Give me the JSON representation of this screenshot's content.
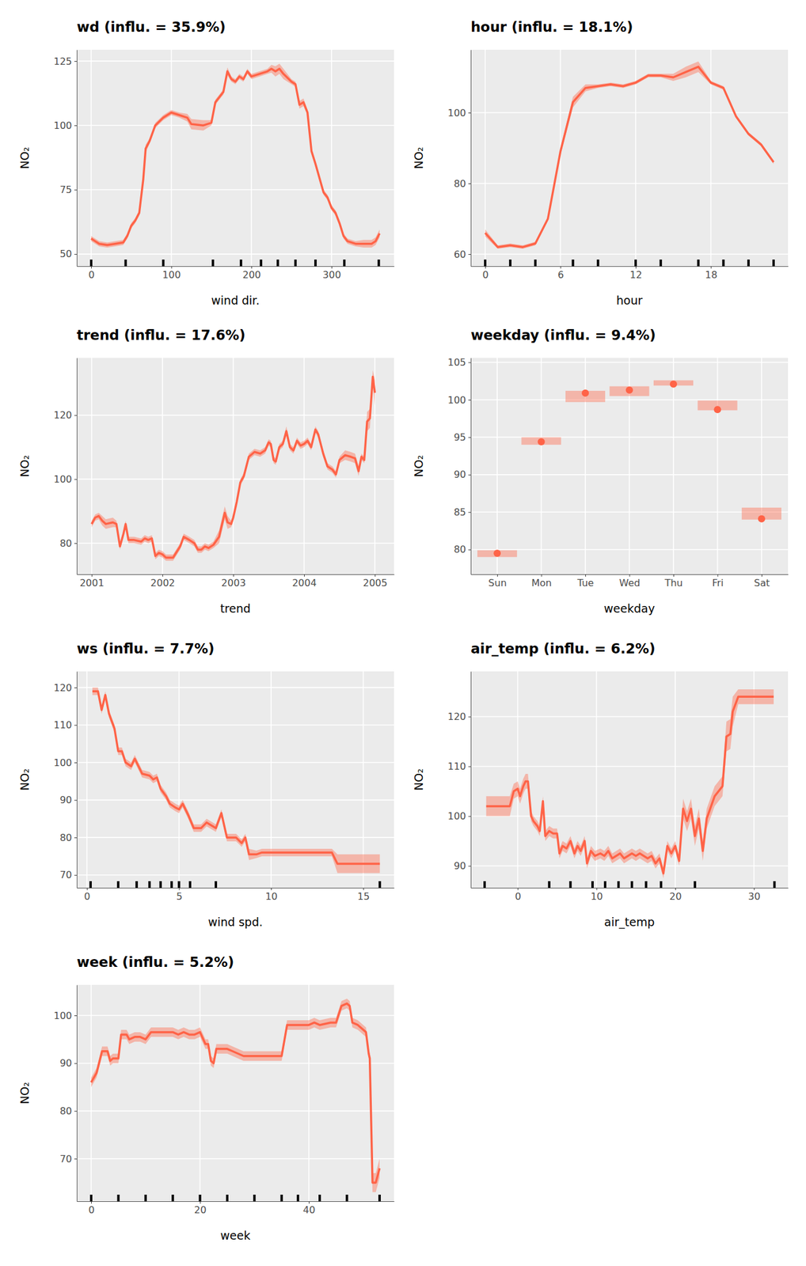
{
  "chart_data": [
    {
      "type": "line",
      "title": "wd (influ. = 35.9%)",
      "x_label": "wind dir.",
      "y_label": "NO₂",
      "color": "#ff6347",
      "grid": true,
      "xlim": [
        -18,
        378
      ],
      "xticks": [
        0,
        100,
        200,
        300
      ],
      "ylim": [
        45.3,
        129.4
      ],
      "yticks": [
        50,
        75,
        100,
        125
      ],
      "x": [
        0,
        5,
        10,
        20,
        30,
        40,
        45,
        50,
        55,
        60,
        65,
        68,
        73,
        80,
        90,
        100,
        110,
        120,
        125,
        140,
        150,
        155,
        160,
        165,
        170,
        175,
        180,
        185,
        190,
        195,
        200,
        210,
        220,
        225,
        230,
        235,
        240,
        250,
        255,
        260,
        265,
        270,
        275,
        280,
        290,
        295,
        300,
        305,
        310,
        315,
        320,
        330,
        340,
        350,
        355,
        360
      ],
      "values": [
        56,
        55,
        54,
        53.5,
        54,
        54.5,
        57,
        61,
        63,
        66,
        79,
        91,
        94,
        100,
        103,
        105,
        104,
        103,
        100.5,
        100,
        101,
        109,
        111,
        113,
        121,
        118,
        117,
        119,
        118,
        121,
        119,
        120,
        121,
        122,
        121,
        122,
        120,
        117,
        116,
        108,
        109,
        105,
        90,
        85,
        74,
        72,
        68,
        66,
        62,
        57,
        55,
        54,
        54,
        54,
        55,
        58
      ],
      "error": [
        1,
        1,
        1,
        1,
        1,
        1,
        1,
        1,
        1,
        1,
        1.5,
        1.5,
        1,
        1,
        1,
        1,
        1,
        1.5,
        2,
        2,
        1,
        1,
        1,
        1,
        1.5,
        1,
        1,
        1,
        1,
        1,
        1,
        1,
        1,
        1.5,
        2,
        2,
        2,
        1,
        1,
        1.5,
        1.5,
        1,
        1,
        1,
        1,
        1,
        1,
        1,
        1,
        1,
        1,
        1,
        1.5,
        1.5,
        1.5,
        1.5
      ],
      "rug": [
        0,
        43,
        90,
        152,
        187,
        212,
        233,
        255,
        280,
        316,
        359
      ]
    },
    {
      "type": "line",
      "title": "hour (influ. = 18.1%)",
      "x_label": "hour",
      "y_label": "NO₂",
      "color": "#ff6347",
      "grid": true,
      "xlim": [
        -1.15,
        24.15
      ],
      "xticks": [
        0,
        6,
        12,
        18
      ],
      "ylim": [
        56.6,
        117.8
      ],
      "yticks": [
        60,
        80,
        100
      ],
      "x": [
        0,
        1,
        2,
        3,
        4,
        5,
        6,
        7,
        8,
        9,
        10,
        11,
        12,
        13,
        14,
        15,
        16,
        17,
        18,
        19,
        20,
        21,
        22,
        23
      ],
      "values": [
        66,
        62,
        62.5,
        62,
        63,
        70,
        89,
        103,
        107,
        107.5,
        108,
        107.5,
        108.5,
        110.5,
        110.5,
        110,
        111.5,
        113,
        108.5,
        107,
        99,
        94,
        91,
        86
      ],
      "error": [
        1,
        0.5,
        0.5,
        0.5,
        0.5,
        0.5,
        1,
        1.5,
        1,
        0.5,
        0.5,
        0.5,
        0.5,
        0.5,
        0.5,
        1,
        1.5,
        1.5,
        0.5,
        0.5,
        0.5,
        0.5,
        0.5,
        0.5
      ],
      "rug": [
        0,
        2,
        4,
        7,
        9,
        12,
        14,
        17,
        19,
        21,
        23
      ]
    },
    {
      "type": "line",
      "title": "trend (influ. = 17.6%)",
      "x_label": "trend",
      "y_label": "NO₂",
      "color": "#ff6347",
      "grid": true,
      "xlim": [
        2000.79,
        2005.27
      ],
      "xticks": [
        2001,
        2002,
        2003,
        2004,
        2005
      ],
      "ylim": [
        70.3,
        137.9
      ],
      "yticks": [
        80,
        100,
        120
      ],
      "x": [
        2001.0,
        2001.05,
        2001.1,
        2001.15,
        2001.2,
        2001.3,
        2001.35,
        2001.4,
        2001.45,
        2001.48,
        2001.52,
        2001.6,
        2001.7,
        2001.75,
        2001.8,
        2001.85,
        2001.9,
        2001.95,
        2002.0,
        2002.05,
        2002.15,
        2002.25,
        2002.3,
        2002.38,
        2002.45,
        2002.5,
        2002.55,
        2002.6,
        2002.65,
        2002.72,
        2002.8,
        2002.88,
        2002.92,
        2002.97,
        2003.0,
        2003.05,
        2003.1,
        2003.15,
        2003.22,
        2003.3,
        2003.38,
        2003.45,
        2003.5,
        2003.53,
        2003.57,
        2003.6,
        2003.65,
        2003.7,
        2003.75,
        2003.8,
        2003.85,
        2003.9,
        2003.95,
        2004.0,
        2004.05,
        2004.1,
        2004.16,
        2004.2,
        2004.27,
        2004.33,
        2004.4,
        2004.45,
        2004.5,
        2004.58,
        2004.66,
        2004.72,
        2004.77,
        2004.81,
        2004.85,
        2004.89,
        2004.93,
        2004.97,
        2005.0
      ],
      "values": [
        86,
        88,
        88.5,
        87,
        86,
        86.5,
        86,
        79,
        83,
        86,
        81,
        81,
        80.5,
        81.5,
        81,
        81.5,
        76,
        77,
        76.5,
        75.5,
        75.5,
        79,
        82,
        81,
        80,
        78,
        78,
        79,
        78.5,
        79.5,
        82,
        89.5,
        86.5,
        86,
        88,
        93,
        99,
        101,
        107,
        108.5,
        108,
        109,
        111.5,
        111,
        106,
        105.5,
        110,
        111,
        115,
        110,
        109,
        112,
        110.5,
        111,
        112,
        110,
        115.5,
        114,
        108,
        104,
        103,
        101.5,
        106,
        107.5,
        107,
        106.5,
        102.5,
        107,
        106,
        118,
        119,
        132,
        127
      ],
      "error": [
        1,
        1,
        1,
        1.5,
        1.5,
        1.5,
        1,
        1,
        1,
        1,
        1,
        1,
        1,
        1,
        1,
        1,
        1,
        1,
        1,
        1,
        1,
        1,
        1,
        1,
        1,
        1,
        1,
        1,
        1,
        1,
        2,
        2,
        2,
        1,
        1,
        1,
        1,
        1,
        1,
        1,
        1,
        1,
        1,
        1,
        1,
        1,
        1,
        1,
        1.5,
        1,
        1,
        1,
        1,
        1,
        1,
        1,
        1,
        1,
        1,
        1,
        1,
        1,
        1,
        1.5,
        1.5,
        1.5,
        1.5,
        1,
        1,
        3,
        3,
        2,
        4
      ]
    },
    {
      "type": "point",
      "title": "weekday (influ. = 9.4%)",
      "x_label": "weekday",
      "y_label": "NO₂",
      "color": "#ff6347",
      "grid": true,
      "categories": [
        "Sun",
        "Mon",
        "Tue",
        "Wed",
        "Thu",
        "Fri",
        "Sat"
      ],
      "ylim": [
        76.7,
        105.6
      ],
      "yticks": [
        80,
        85,
        90,
        95,
        100,
        105
      ],
      "values": [
        79.5,
        94.4,
        100.9,
        101.3,
        102.1,
        98.7,
        84.1
      ],
      "lower": [
        79.0,
        94.0,
        99.7,
        100.5,
        101.9,
        98.6,
        84.0
      ],
      "upper": [
        79.9,
        95.0,
        101.2,
        101.8,
        102.6,
        99.9,
        85.6
      ]
    },
    {
      "type": "line",
      "title": "ws (influ. = 7.7%)",
      "x_label": "wind spd.",
      "y_label": "NO₂",
      "color": "#ff6347",
      "grid": true,
      "xlim": [
        -0.55,
        16.67
      ],
      "xticks": [
        0,
        5,
        10,
        15
      ],
      "ylim": [
        66.6,
        124.3
      ],
      "yticks": [
        70,
        80,
        90,
        100,
        110,
        120
      ],
      "x": [
        0.3,
        0.6,
        0.8,
        1.0,
        1.2,
        1.5,
        1.7,
        1.9,
        2.1,
        2.4,
        2.6,
        2.8,
        3.0,
        3.4,
        3.6,
        3.8,
        4.0,
        4.3,
        4.5,
        4.8,
        5.0,
        5.2,
        5.5,
        5.8,
        6.2,
        6.5,
        7.0,
        7.3,
        7.6,
        8.1,
        8.4,
        8.6,
        8.8,
        9.2,
        9.5,
        13.3,
        13.6,
        15.9
      ],
      "values": [
        119,
        119,
        114,
        118,
        113,
        109,
        103,
        103,
        100,
        99,
        101,
        99,
        97,
        96.5,
        95.5,
        96,
        93,
        91,
        89,
        88,
        87.5,
        89,
        86,
        82.5,
        82.5,
        84,
        82.5,
        86.5,
        80,
        80,
        78.5,
        80,
        75.5,
        75.5,
        76,
        76,
        73,
        73
      ],
      "error": [
        1,
        1,
        1,
        1,
        1,
        1,
        1,
        1,
        1,
        1,
        1,
        1,
        1,
        1,
        1,
        1,
        1,
        1,
        1,
        1,
        1,
        1,
        1,
        1,
        1,
        1,
        1,
        1,
        1,
        1,
        1,
        1,
        1.5,
        1,
        1,
        1,
        2.5,
        2.5
      ],
      "rug": [
        0.2,
        1.7,
        2.7,
        3.4,
        4.0,
        4.6,
        5.0,
        5.6,
        7.0,
        15.9
      ]
    },
    {
      "type": "line",
      "title": "air_temp (influ. = 6.2%)",
      "x_label": "air_temp",
      "y_label": "NO₂",
      "color": "#ff6347",
      "grid": true,
      "xlim": [
        -5.96,
        34.32
      ],
      "xticks": [
        0,
        10,
        20,
        30
      ],
      "ylim": [
        85.6,
        129.1
      ],
      "yticks": [
        90,
        100,
        110,
        120
      ],
      "x": [
        -4,
        -2,
        -1,
        -0.5,
        0,
        0.3,
        0.7,
        1,
        1.3,
        1.7,
        2,
        2.5,
        2.8,
        3.2,
        3.5,
        4,
        4.5,
        5,
        5.3,
        5.7,
        6.2,
        6.7,
        7.2,
        7.6,
        8,
        8.5,
        8.8,
        9.3,
        9.8,
        10.5,
        11,
        11.5,
        12,
        13,
        13.5,
        14.5,
        15,
        15.5,
        16.5,
        17,
        17.5,
        18,
        18.5,
        19,
        19.5,
        20,
        20.5,
        21,
        21.5,
        22,
        22.5,
        23,
        23.5,
        24,
        25,
        26,
        26.5,
        27,
        27.3,
        28,
        30,
        32.5
      ],
      "values": [
        102,
        102,
        102,
        105,
        105.5,
        104,
        106,
        107,
        107,
        100,
        99,
        98,
        97,
        103,
        96,
        97,
        96.5,
        96.5,
        92.5,
        94,
        93.5,
        95,
        92.5,
        94,
        93,
        95,
        90.5,
        93,
        92,
        92.5,
        92,
        93,
        91.5,
        92.5,
        91.5,
        92.5,
        92,
        92.5,
        91.5,
        92,
        90.5,
        91.5,
        88.5,
        94,
        92.5,
        94,
        91,
        101.5,
        99,
        101.5,
        96,
        99.5,
        93,
        99.5,
        104,
        106,
        116,
        116.5,
        121,
        124,
        124,
        124
      ],
      "error": [
        2,
        2,
        2,
        1.5,
        1.5,
        1.5,
        1.5,
        1.5,
        1.5,
        1,
        1,
        1,
        1,
        1,
        1,
        1,
        1,
        1,
        1,
        1,
        1,
        1,
        1,
        1,
        1,
        1,
        1,
        1,
        1,
        1,
        1,
        1,
        1,
        1,
        1,
        1,
        1,
        1,
        1,
        1,
        1,
        1,
        1,
        1,
        1,
        1,
        1,
        2,
        2,
        2,
        2,
        2,
        2,
        2,
        2,
        2,
        3,
        3,
        3,
        1.5,
        1.5,
        1.5
      ],
      "rug": [
        -4.2,
        4.0,
        6.7,
        9.5,
        11.1,
        12.8,
        14.5,
        16.3,
        18.2,
        22.5,
        32.6
      ]
    },
    {
      "type": "line",
      "title": "week (influ. = 5.2%)",
      "x_label": "week",
      "y_label": "NO₂",
      "color": "#ff6347",
      "grid": true,
      "xlim": [
        -2.65,
        55.65
      ],
      "xticks": [
        0,
        20,
        40
      ],
      "ylim": [
        61.1,
        106.4
      ],
      "yticks": [
        70,
        80,
        90,
        100
      ],
      "x": [
        0,
        1,
        2,
        3,
        3.5,
        4,
        5,
        5.5,
        6.5,
        7,
        8,
        9,
        10,
        11,
        13,
        15,
        16,
        17,
        18,
        19,
        20,
        21,
        21.5,
        22,
        22.5,
        23,
        25,
        26,
        27,
        28,
        31,
        33,
        35,
        36,
        38,
        40,
        41,
        42,
        44,
        45,
        46,
        47,
        47.5,
        48,
        49,
        50,
        50.5,
        51,
        51.2,
        51.7,
        52.3,
        53
      ],
      "values": [
        86,
        88,
        92.5,
        92.5,
        90.5,
        91,
        91,
        96,
        96,
        95,
        95.5,
        95.5,
        95,
        96.5,
        96.5,
        96.5,
        96,
        96.5,
        96,
        96,
        96.5,
        94,
        94,
        90.5,
        90,
        93,
        93,
        92.5,
        92,
        91.5,
        91.5,
        91.5,
        91.5,
        98,
        98,
        98,
        98.5,
        98,
        98.5,
        98.5,
        102,
        102.5,
        102,
        98.5,
        98,
        97,
        96.5,
        92,
        91,
        65,
        65,
        68
      ],
      "error": [
        1,
        1,
        1,
        1,
        1,
        1,
        1,
        1,
        1,
        1,
        1,
        1,
        1,
        1,
        1,
        1,
        1,
        1,
        1,
        1,
        1,
        1,
        1,
        1,
        1,
        1,
        1,
        1,
        1,
        1,
        1,
        1,
        1,
        1,
        1,
        1,
        1,
        1,
        1,
        1,
        1,
        1,
        1,
        1,
        1,
        1,
        1,
        1,
        1,
        2,
        2,
        2
      ],
      "rug": [
        0,
        5,
        10,
        15,
        20,
        25,
        30,
        35,
        38,
        42,
        47,
        53
      ]
    }
  ]
}
